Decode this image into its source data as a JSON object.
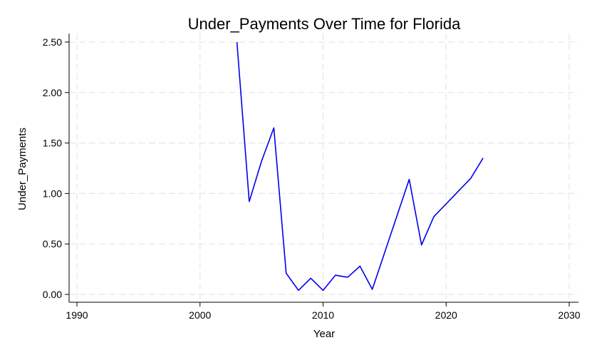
{
  "chart_data": {
    "type": "line",
    "title": "Under_Payments Over Time for Florida",
    "xlabel": "Year",
    "ylabel": "Under_Payments",
    "xlim": [
      1990,
      2030
    ],
    "ylim": [
      0.0,
      2.5
    ],
    "x_ticks": [
      1990,
      2000,
      2010,
      2020,
      2030
    ],
    "y_ticks": [
      "0.00",
      "0.50",
      "1.00",
      "1.50",
      "2.00",
      "2.50"
    ],
    "grid": true,
    "series": [
      {
        "color": "#0000ee",
        "x": [
          2003,
          2004,
          2005,
          2006,
          2007,
          2008,
          2009,
          2010,
          2011,
          2012,
          2013,
          2014,
          2017,
          2018,
          2019,
          2022,
          2023
        ],
        "y": [
          2.5,
          0.92,
          1.32,
          1.65,
          0.21,
          0.04,
          0.16,
          0.04,
          0.19,
          0.17,
          0.28,
          0.05,
          1.14,
          0.49,
          0.77,
          1.15,
          1.35
        ]
      }
    ]
  }
}
